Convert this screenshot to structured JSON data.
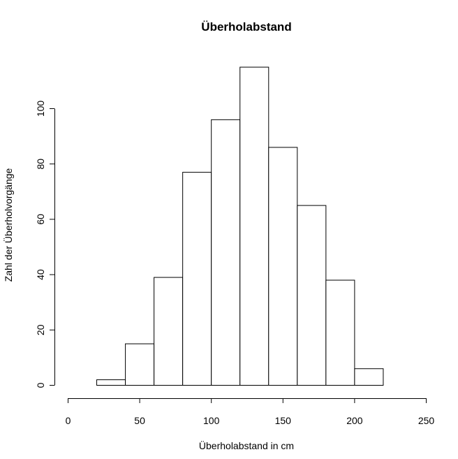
{
  "chart_data": {
    "type": "bar",
    "subtype": "histogram",
    "title": "Überholabstand",
    "xlabel": "Überholabstand in cm",
    "ylabel": "Zahl der Überholvorgänge",
    "xlim": [
      0,
      250
    ],
    "ylim": [
      0,
      115
    ],
    "x_ticks": [
      0,
      50,
      100,
      150,
      200,
      250
    ],
    "y_ticks": [
      0,
      20,
      40,
      60,
      80,
      100
    ],
    "bins": [
      {
        "start": 20,
        "end": 40,
        "count": 2
      },
      {
        "start": 40,
        "end": 60,
        "count": 15
      },
      {
        "start": 60,
        "end": 80,
        "count": 39
      },
      {
        "start": 80,
        "end": 100,
        "count": 77
      },
      {
        "start": 100,
        "end": 120,
        "count": 96
      },
      {
        "start": 120,
        "end": 140,
        "count": 115
      },
      {
        "start": 140,
        "end": 160,
        "count": 86
      },
      {
        "start": 160,
        "end": 180,
        "count": 65
      },
      {
        "start": 180,
        "end": 200,
        "count": 38
      },
      {
        "start": 200,
        "end": 220,
        "count": 6
      }
    ],
    "grid": false,
    "legend": "none",
    "colors": {
      "bar_fill": "#ffffff",
      "bar_stroke": "#000000"
    }
  }
}
